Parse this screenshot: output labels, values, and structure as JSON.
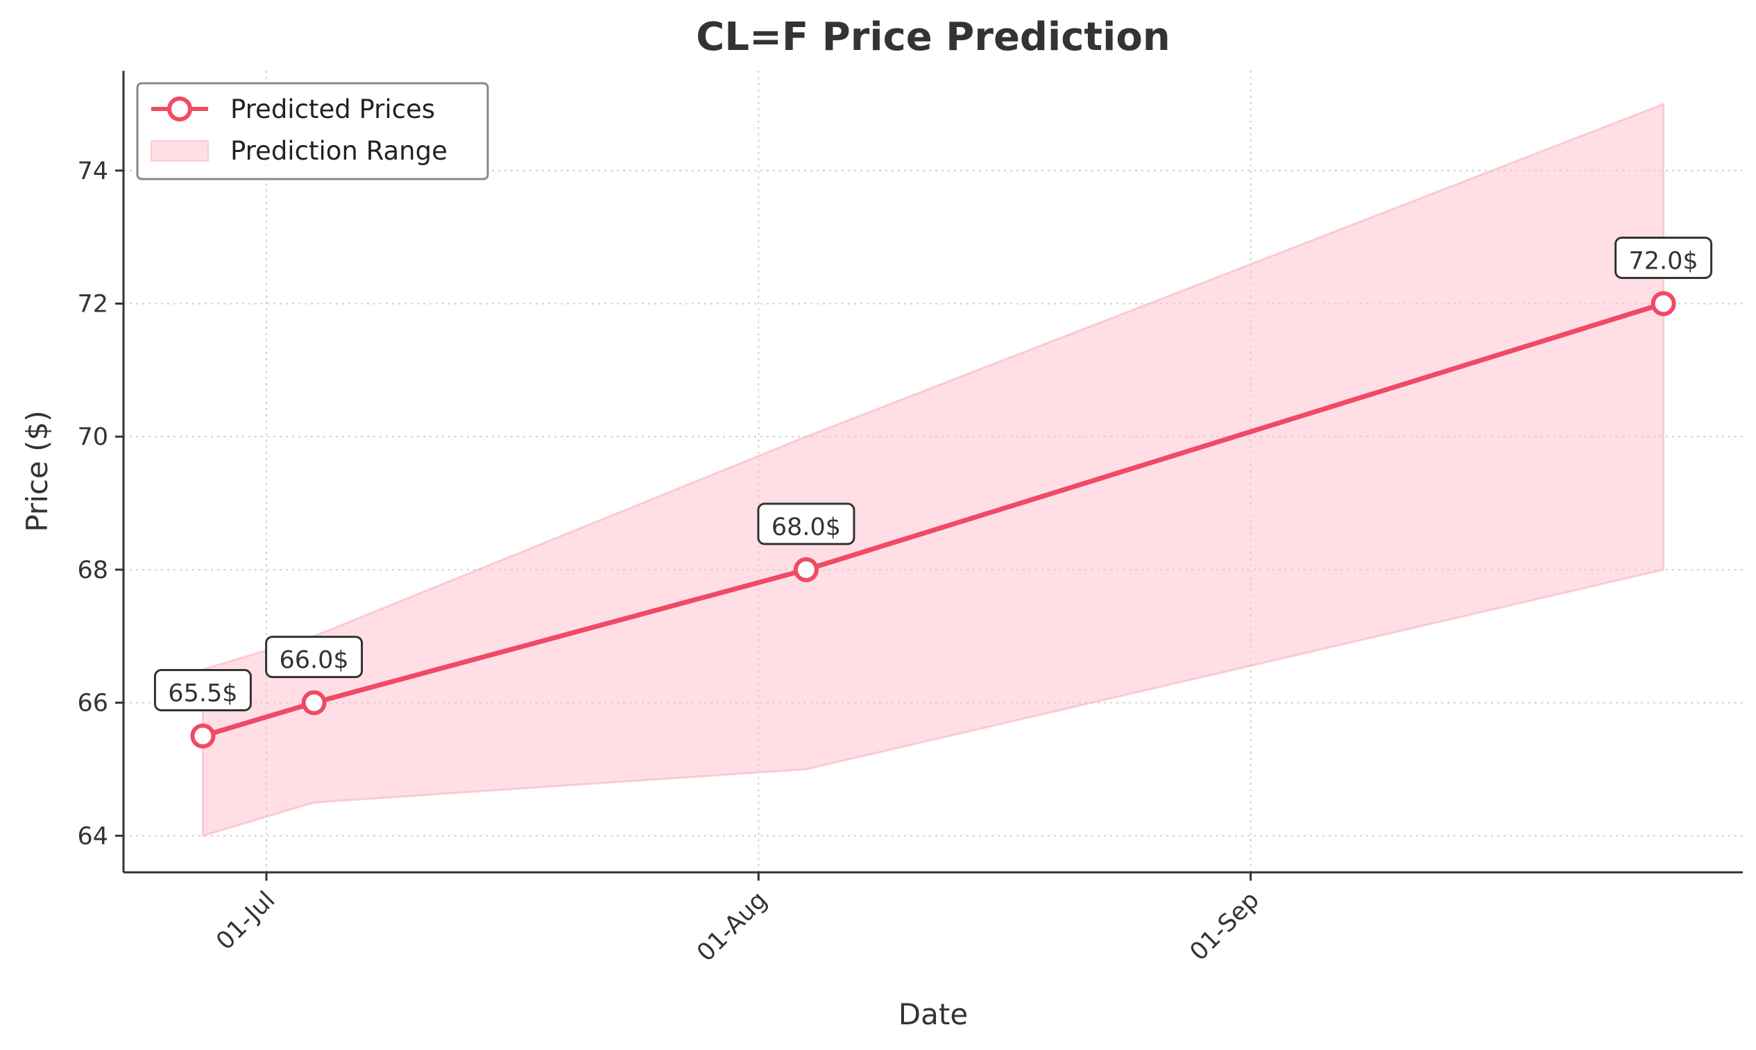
{
  "chart_data": {
    "type": "line",
    "title": "CL=F Price Prediction",
    "xlabel": "Date",
    "ylabel": "Price ($)",
    "x": [
      "2024-06-27",
      "2024-07-04",
      "2024-08-04",
      "2024-09-27"
    ],
    "x_tick_labels": [
      {
        "date": "2024-07-01",
        "label": "01-Jul"
      },
      {
        "date": "2024-08-01",
        "label": "01-Aug"
      },
      {
        "date": "2024-09-01",
        "label": "01-Sep"
      }
    ],
    "xlim": [
      "2024-06-22",
      "2024-10-02"
    ],
    "ylim": [
      63.45,
      75.5
    ],
    "y_ticks": [
      64,
      66,
      68,
      70,
      72,
      74
    ],
    "grid": true,
    "legend_position": "top-left",
    "series": [
      {
        "name": "Predicted Prices",
        "values": [
          65.5,
          66.0,
          68.0,
          72.0
        ],
        "labels": [
          "65.5$",
          "66.0$",
          "68.0$",
          "72.0$"
        ],
        "color": "#f04a64"
      }
    ],
    "range": {
      "name": "Prediction Range",
      "upper": [
        66.5,
        67.0,
        70.0,
        75.0
      ],
      "lower": [
        64.0,
        64.5,
        65.0,
        68.0
      ],
      "color": "#ffc0cb"
    }
  }
}
